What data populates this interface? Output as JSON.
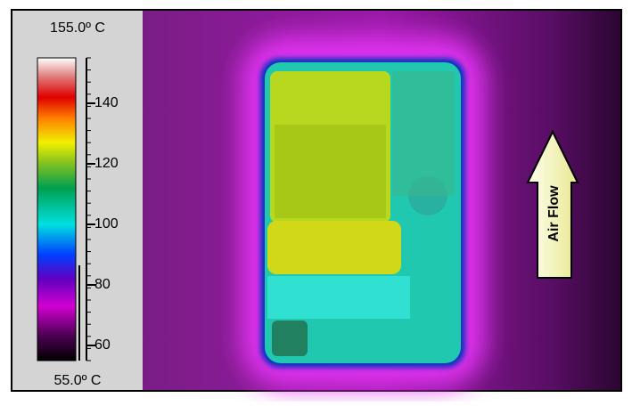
{
  "scale": {
    "max": {
      "value": 155,
      "label": "155.0º C"
    },
    "min": {
      "value": 55,
      "label": "55.0º C"
    },
    "ticks": [
      60,
      80,
      100,
      120,
      140
    ]
  },
  "annotation": "Air Flow"
}
